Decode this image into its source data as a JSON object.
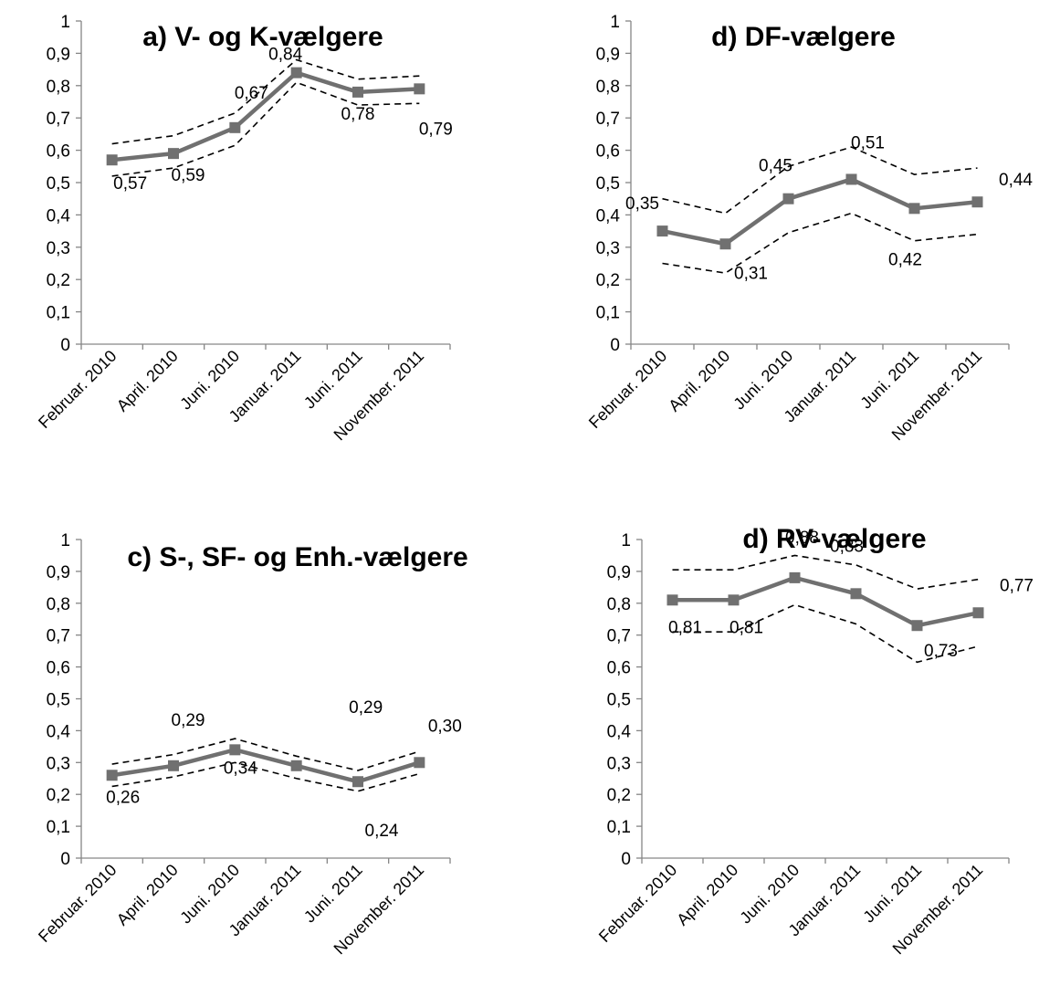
{
  "chart_data": [
    {
      "type": "line",
      "title": "a) V- og K-vælgere",
      "categories": [
        "Februar. 2010",
        "April. 2010",
        "Juni. 2010",
        "Januar. 2011",
        "Juni. 2011",
        "November. 2011"
      ],
      "values": [
        0.57,
        0.59,
        0.67,
        0.84,
        0.78,
        0.79
      ],
      "data_labels": [
        "0,57",
        "0,59",
        "0,67",
        "0,84",
        "0,78",
        "0,79"
      ],
      "upper": [
        0.62,
        0.645,
        0.715,
        0.88,
        0.82,
        0.83
      ],
      "lower": [
        0.52,
        0.545,
        0.615,
        0.81,
        0.74,
        0.745
      ],
      "ylim": [
        0,
        1
      ],
      "yticks": [
        "0",
        "0,1",
        "0,2",
        "0,3",
        "0,4",
        "0,5",
        "0,6",
        "0,7",
        "0,8",
        "0,9",
        "1"
      ],
      "grid": false,
      "line_color": "#707070"
    },
    {
      "type": "line",
      "title": "d) DF-vælgere",
      "categories": [
        "Februar. 2010",
        "April. 2010",
        "Juni. 2010",
        "Januar. 2011",
        "Juni. 2011",
        "November. 2011"
      ],
      "values": [
        0.35,
        0.31,
        0.45,
        0.51,
        0.42,
        0.44
      ],
      "data_labels": [
        "0,35",
        "0,31",
        "0,45",
        "0,51",
        "0,42",
        "0,44"
      ],
      "upper": [
        0.45,
        0.405,
        0.55,
        0.61,
        0.525,
        0.545
      ],
      "lower": [
        0.25,
        0.22,
        0.345,
        0.405,
        0.32,
        0.34
      ],
      "ylim": [
        0,
        1
      ],
      "yticks": [
        "0",
        "0,1",
        "0,2",
        "0,3",
        "0,4",
        "0,5",
        "0,6",
        "0,7",
        "0,8",
        "0,9",
        "1"
      ],
      "grid": false,
      "line_color": "#707070"
    },
    {
      "type": "line",
      "title": "c) S-, SF- og Enh.-vælgere",
      "categories": [
        "Februar. 2010",
        "April. 2010",
        "Juni. 2010",
        "Januar. 2011",
        "Juni. 2011",
        "November. 2011"
      ],
      "values": [
        0.26,
        0.29,
        0.34,
        0.29,
        0.24,
        0.3
      ],
      "data_labels": [
        "0,26",
        "0,29",
        "0,34",
        "0,29",
        "0,24",
        "0,30"
      ],
      "upper": [
        0.295,
        0.325,
        0.375,
        0.32,
        0.275,
        0.335
      ],
      "lower": [
        0.225,
        0.255,
        0.3,
        0.25,
        0.21,
        0.265
      ],
      "ylim": [
        0,
        1
      ],
      "yticks": [
        "0",
        "0,1",
        "0,2",
        "0,3",
        "0,4",
        "0,5",
        "0,6",
        "0,7",
        "0,8",
        "0,9",
        "1"
      ],
      "grid": false,
      "line_color": "#707070"
    },
    {
      "type": "line",
      "title": "d) RV-vælgere",
      "categories": [
        "Februar. 2010",
        "April. 2010",
        "Juni. 2010",
        "Januar. 2011",
        "Juni. 2011",
        "November. 2011"
      ],
      "values": [
        0.81,
        0.81,
        0.88,
        0.83,
        0.73,
        0.77
      ],
      "data_labels": [
        "0,81",
        "0,81",
        "0,88",
        "0,83",
        "0,73",
        "0,77"
      ],
      "upper": [
        0.905,
        0.905,
        0.95,
        0.92,
        0.845,
        0.875
      ],
      "lower": [
        0.71,
        0.71,
        0.795,
        0.735,
        0.615,
        0.665
      ],
      "ylim": [
        0,
        1
      ],
      "yticks": [
        "0",
        "0,1",
        "0,2",
        "0,3",
        "0,4",
        "0,5",
        "0,6",
        "0,7",
        "0,8",
        "0,9",
        "1"
      ],
      "grid": false,
      "line_color": "#707070"
    }
  ]
}
